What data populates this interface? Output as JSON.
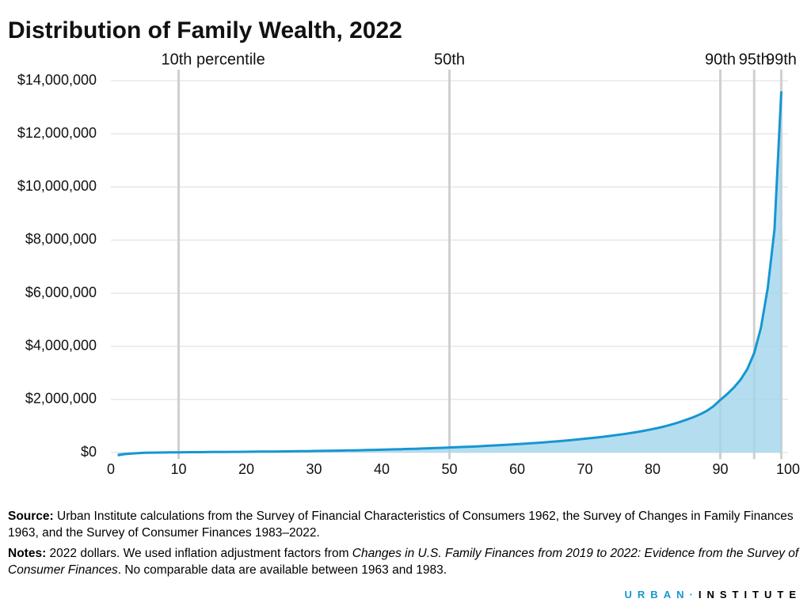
{
  "chart_data": {
    "type": "area",
    "title": "Distribution of Family Wealth, 2022",
    "x": [
      1,
      2,
      3,
      4,
      5,
      6,
      7,
      8,
      9,
      10,
      11,
      12,
      13,
      14,
      15,
      16,
      17,
      18,
      19,
      20,
      21,
      22,
      23,
      24,
      25,
      26,
      27,
      28,
      29,
      30,
      31,
      32,
      33,
      34,
      35,
      36,
      37,
      38,
      39,
      40,
      41,
      42,
      43,
      44,
      45,
      46,
      47,
      48,
      49,
      50,
      51,
      52,
      53,
      54,
      55,
      56,
      57,
      58,
      59,
      60,
      61,
      62,
      63,
      64,
      65,
      66,
      67,
      68,
      69,
      70,
      71,
      72,
      73,
      74,
      75,
      76,
      77,
      78,
      79,
      80,
      81,
      82,
      83,
      84,
      85,
      86,
      87,
      88,
      89,
      90,
      91,
      92,
      93,
      94,
      95,
      96,
      97,
      98,
      99
    ],
    "series": [
      {
        "color": "#1696d2",
        "fill": "#a2d4ec",
        "values": [
          -100000,
          -60000,
          -35000,
          -20000,
          -10000,
          -3000,
          1000,
          4000,
          7000,
          10000,
          12000,
          14000,
          16000,
          18000,
          20000,
          22000,
          24000,
          26000,
          28000,
          31000,
          33000,
          35000,
          38000,
          40000,
          43000,
          46000,
          49000,
          52000,
          55000,
          59000,
          63000,
          67000,
          71000,
          75000,
          80000,
          85000,
          90000,
          96000,
          102000,
          108000,
          115000,
          122000,
          129000,
          136000,
          144000,
          152000,
          161000,
          170000,
          180000,
          190000,
          200000,
          211000,
          222000,
          234000,
          246000,
          259000,
          272000,
          286000,
          300000,
          315000,
          331000,
          348000,
          366000,
          385000,
          405000,
          426000,
          448000,
          471000,
          495000,
          520000,
          547000,
          575000,
          605000,
          637000,
          671000,
          707000,
          746000,
          788000,
          834000,
          884000,
          939000,
          1000000,
          1070000,
          1150000,
          1240000,
          1330000,
          1440000,
          1570000,
          1750000,
          1980000,
          2200000,
          2450000,
          2750000,
          3150000,
          3750000,
          4700000,
          6200000,
          8400000,
          13600000
        ]
      }
    ],
    "xlim": [
      0,
      100
    ],
    "xticks": [
      0,
      10,
      20,
      30,
      40,
      50,
      60,
      70,
      80,
      90,
      100
    ],
    "ylim": [
      -250000,
      14000000
    ],
    "yticks": [
      {
        "value": 0,
        "label": "$0"
      },
      {
        "value": 2000000,
        "label": "$2,000,000"
      },
      {
        "value": 4000000,
        "label": "$4,000,000"
      },
      {
        "value": 6000000,
        "label": "$6,000,000"
      },
      {
        "value": 8000000,
        "label": "$8,000,000"
      },
      {
        "value": 10000000,
        "label": "$10,000,000"
      },
      {
        "value": 12000000,
        "label": "$12,000,000"
      },
      {
        "value": 14000000,
        "label": "$14,000,000"
      }
    ],
    "grid": true,
    "reference_lines": [
      {
        "x": 10,
        "label": "10th percentile"
      },
      {
        "x": 50,
        "label": "50th"
      },
      {
        "x": 90,
        "label": "90th"
      },
      {
        "x": 95,
        "label": "95th"
      },
      {
        "x": 99,
        "label": "99th"
      }
    ]
  },
  "footer": {
    "source": {
      "label": "Source:",
      "text": "Urban Institute calculations from the Survey of Financial Characteristics of Consumers 1962, the Survey of Changes in Family Finances 1963, and the Survey of Consumer Finances 1983–2022."
    },
    "notes": {
      "label": "Notes:",
      "text1": "2022 dollars. We used inflation adjustment factors from ",
      "italic": "Changes in U.S. Family Finances from 2019 to 2022: Evidence from the Survey of Consumer Finances",
      "text2": ". No comparable data are available between 1963 and 1983."
    },
    "logo": {
      "left": "URBAN",
      "right": "INSTITUTE"
    }
  }
}
